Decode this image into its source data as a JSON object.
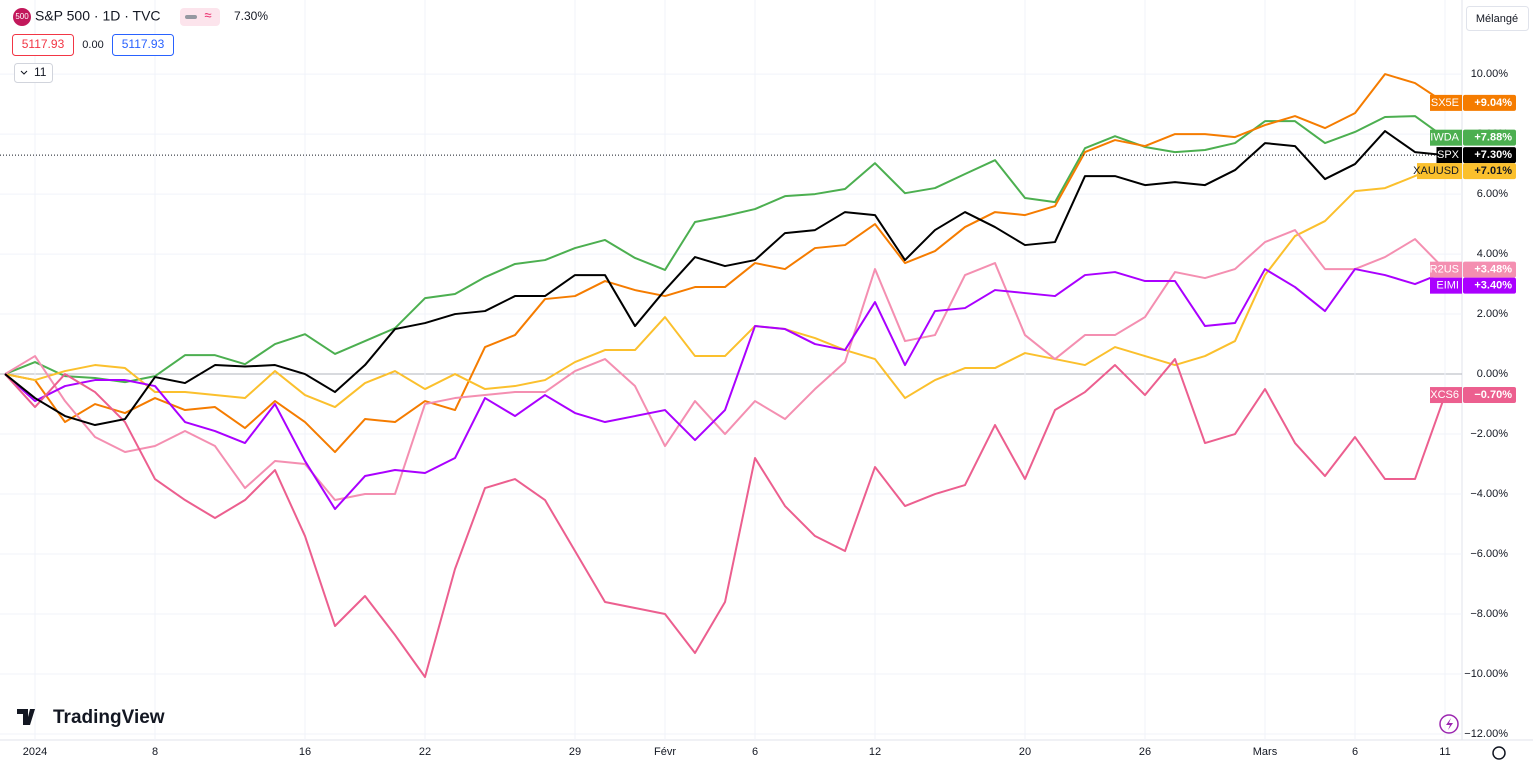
{
  "header": {
    "symbol": "S&P 500 · 1D · TVC",
    "icon": "500",
    "change": "7.30%",
    "bid": "5117.93",
    "spread": "0.00",
    "ask": "5117.93",
    "indicators": "11",
    "scale_mode": "Mélangé",
    "brand": "TradingView"
  },
  "chart_data": {
    "type": "line",
    "grid": true,
    "categories": [
      null,
      "2024",
      null,
      null,
      null,
      "8",
      null,
      null,
      null,
      null,
      "16",
      null,
      null,
      null,
      "22",
      null,
      null,
      null,
      null,
      "29",
      null,
      null,
      "Févr",
      null,
      null,
      "6",
      null,
      null,
      null,
      "12",
      null,
      null,
      null,
      null,
      "20",
      null,
      null,
      null,
      "26",
      null,
      null,
      null,
      "Mars",
      null,
      null,
      "6",
      null,
      null,
      "11"
    ],
    "ylim": [
      -12.2,
      12.47
    ],
    "yticks": [
      {
        "value": 10,
        "label": "10.00%"
      },
      {
        "value": 8,
        "label": "8.00%"
      },
      {
        "value": 6,
        "label": "6.00%"
      },
      {
        "value": 4,
        "label": "4.00%"
      },
      {
        "value": 2,
        "label": "2.00%"
      },
      {
        "value": 0,
        "label": "0.00%"
      },
      {
        "value": -2,
        "label": "−2.00%"
      },
      {
        "value": -4,
        "label": "−4.00%"
      },
      {
        "value": -6,
        "label": "−6.00%"
      },
      {
        "value": -8,
        "label": "−8.00%"
      },
      {
        "value": -10,
        "label": "−10.00%"
      },
      {
        "value": -12,
        "label": "−12.00%"
      }
    ],
    "series": [
      {
        "name": "IWDA",
        "color": "#4caf50",
        "value_label": "+7.88%",
        "values": [
          0,
          0.4,
          -0.07,
          -0.13,
          -0.27,
          -0.07,
          0.63,
          0.63,
          0.33,
          1.0,
          1.33,
          0.67,
          1.1,
          1.53,
          2.53,
          2.67,
          3.23,
          3.67,
          3.8,
          4.2,
          4.47,
          3.87,
          3.47,
          5.07,
          5.27,
          5.5,
          5.93,
          6.0,
          6.17,
          7.03,
          6.03,
          6.2,
          6.67,
          7.13,
          5.87,
          5.73,
          7.53,
          7.93,
          7.57,
          7.4,
          7.47,
          7.7,
          8.43,
          8.43,
          7.7,
          8.07,
          8.57,
          8.6,
          7.88
        ]
      },
      {
        "name": "SX5E",
        "color": "#f57c00",
        "value_label": "+9.04%",
        "values": [
          0,
          -0.2,
          -1.6,
          -1.0,
          -1.3,
          -0.8,
          -1.2,
          -1.1,
          -1.8,
          -0.9,
          -1.6,
          -2.6,
          -1.5,
          -1.6,
          -0.9,
          -1.2,
          0.9,
          1.3,
          2.5,
          2.6,
          3.1,
          2.8,
          2.6,
          2.9,
          2.9,
          3.7,
          3.5,
          4.2,
          4.3,
          5.0,
          3.7,
          4.1,
          4.9,
          5.4,
          5.3,
          5.6,
          7.4,
          7.8,
          7.6,
          8.0,
          8.0,
          7.9,
          8.3,
          8.6,
          8.2,
          8.7,
          10.0,
          9.7,
          9.04
        ]
      },
      {
        "name": "XAUUSD",
        "color": "#fbc02d",
        "value_label": "+7.01%",
        "values": [
          0,
          -0.2,
          0.1,
          0.3,
          0.2,
          -0.6,
          -0.6,
          -0.7,
          -0.8,
          0.1,
          -0.7,
          -1.1,
          -0.3,
          0.1,
          -0.5,
          0.0,
          -0.5,
          -0.4,
          -0.2,
          0.4,
          0.8,
          0.8,
          1.9,
          0.6,
          0.6,
          1.6,
          1.5,
          1.2,
          0.8,
          0.5,
          -0.8,
          -0.2,
          0.2,
          0.2,
          0.7,
          0.5,
          0.3,
          0.9,
          0.6,
          0.3,
          0.6,
          1.1,
          3.3,
          4.6,
          5.1,
          6.1,
          6.2,
          6.6,
          7.01
        ]
      },
      {
        "name": "R2US",
        "color": "#f48fb1",
        "value_label": "+3.48%",
        "values": [
          0,
          0.6,
          -0.9,
          -2.1,
          -2.6,
          -2.4,
          -1.9,
          -2.4,
          -3.8,
          -2.9,
          -3.0,
          -4.2,
          -4.0,
          -4.0,
          -1.0,
          -0.8,
          -0.7,
          -0.6,
          -0.6,
          0.1,
          0.5,
          -0.4,
          -2.4,
          -0.9,
          -2.0,
          -0.9,
          -1.5,
          -0.5,
          0.4,
          3.5,
          1.1,
          1.3,
          3.3,
          3.7,
          1.3,
          0.5,
          1.3,
          1.3,
          1.9,
          3.4,
          3.2,
          3.5,
          4.4,
          4.8,
          3.5,
          3.5,
          3.9,
          4.5,
          3.48
        ]
      },
      {
        "name": "EIMI",
        "color": "#aa00ff",
        "value_label": "+3.40%",
        "values": [
          0,
          -0.9,
          -0.4,
          -0.2,
          -0.2,
          -0.4,
          -1.6,
          -1.9,
          -2.3,
          -1.0,
          -2.9,
          -4.5,
          -3.4,
          -3.2,
          -3.3,
          -2.8,
          -0.8,
          -1.4,
          -0.7,
          -1.3,
          -1.6,
          -1.4,
          -1.2,
          -2.2,
          -1.2,
          1.6,
          1.5,
          1.0,
          0.8,
          2.4,
          0.3,
          2.1,
          2.2,
          2.8,
          2.7,
          2.6,
          3.3,
          3.4,
          3.1,
          3.1,
          1.6,
          1.7,
          3.5,
          2.9,
          2.1,
          3.5,
          3.3,
          3.0,
          3.4
        ]
      },
      {
        "name": "XCS6",
        "color": "#ec5f8f",
        "value_label": "−0.70%",
        "values": [
          0,
          -1.1,
          0.0,
          -0.6,
          -1.6,
          -3.5,
          -4.2,
          -4.8,
          -4.2,
          -3.2,
          -5.4,
          -8.4,
          -7.4,
          -8.7,
          -10.1,
          -6.5,
          -3.8,
          -3.5,
          -4.2,
          -5.9,
          -7.6,
          -7.8,
          -8.0,
          -9.3,
          -7.6,
          -2.8,
          -4.4,
          -5.4,
          -5.9,
          -3.1,
          -4.4,
          -4.0,
          -3.7,
          -1.7,
          -3.5,
          -1.2,
          -0.6,
          0.3,
          -0.7,
          0.5,
          -2.3,
          -2.0,
          -0.5,
          -2.3,
          -3.4,
          -2.1,
          -3.5,
          -3.5,
          -0.7
        ]
      },
      {
        "name": "SPX",
        "color": "#000000",
        "value_label": "+7.30%",
        "main": true,
        "values": [
          0,
          -0.8,
          -1.4,
          -1.7,
          -1.5,
          -0.1,
          -0.3,
          0.3,
          0.25,
          0.3,
          0.0,
          -0.6,
          0.3,
          1.5,
          1.7,
          2.0,
          2.1,
          2.6,
          2.6,
          3.3,
          3.3,
          1.6,
          2.8,
          3.9,
          3.6,
          3.8,
          4.7,
          4.8,
          5.4,
          5.3,
          3.8,
          4.8,
          5.4,
          4.9,
          4.3,
          4.4,
          6.6,
          6.6,
          6.3,
          6.4,
          6.3,
          6.8,
          7.7,
          7.6,
          6.5,
          7.0,
          8.1,
          7.4,
          7.3
        ]
      }
    ]
  }
}
